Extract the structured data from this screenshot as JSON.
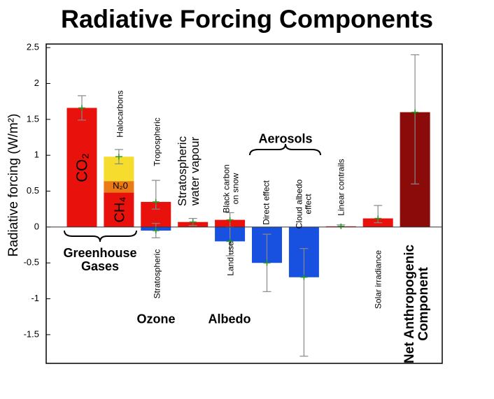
{
  "chart_data": {
    "type": "bar",
    "title": "Radiative Forcing Components",
    "y_label": "Radiative forcing (W/m²)",
    "ylim": [
      -1.9,
      2.55
    ],
    "yticks": [
      2.5,
      2,
      1.5,
      1,
      0.5,
      0,
      -0.5,
      -1,
      -1.5
    ],
    "columns": [
      {
        "segments": [
          {
            "label": "CO₂",
            "value": 1.66,
            "color": "#e8110c",
            "range": [
              1.49,
              1.83
            ]
          }
        ]
      },
      {
        "segments": [
          {
            "label": "CH₄",
            "value": 0.48,
            "color": "#e8110c"
          },
          {
            "label": "N₂0",
            "value": 0.16,
            "color": "#ea7a14"
          },
          {
            "label": "Halocarbons",
            "value": 0.34,
            "color": "#f6dc2c",
            "range": [
              0.88,
              1.08
            ]
          }
        ]
      },
      {
        "segments": [
          {
            "label": "Tropospheric",
            "value": 0.35,
            "color": "#e8110c",
            "range": [
              0.25,
              0.65
            ]
          },
          {
            "label": "Stratospheric",
            "value": -0.05,
            "color": "#1851e0",
            "range": [
              -0.15,
              0.05
            ]
          }
        ]
      },
      {
        "segments": [
          {
            "label": "Stratospheric water vapour",
            "value": 0.07,
            "color": "#e8110c",
            "range": [
              0.02,
              0.12
            ]
          }
        ]
      },
      {
        "segments": [
          {
            "label": "Black carbon on snow",
            "value": 0.1,
            "color": "#e8110c",
            "range": [
              0,
              0.2
            ]
          },
          {
            "label": "Land use",
            "value": -0.2,
            "color": "#1851e0",
            "range": [
              -0.4,
              0
            ]
          }
        ]
      },
      {
        "segments": [
          {
            "label": "Direct effect",
            "value": -0.5,
            "color": "#1851e0",
            "range": [
              -0.9,
              -0.1
            ]
          }
        ]
      },
      {
        "segments": [
          {
            "label": "Cloud albedo effect",
            "value": -0.7,
            "color": "#1851e0",
            "range": [
              -1.8,
              -0.3
            ]
          }
        ]
      },
      {
        "segments": [
          {
            "label": "Linear contrails",
            "value": 0.01,
            "color": "#e8110c",
            "range": [
              0.003,
              0.03
            ]
          }
        ]
      },
      {
        "segments": [
          {
            "label": "Solar irradiance",
            "value": 0.12,
            "color": "#e8110c",
            "range": [
              0.06,
              0.3
            ]
          }
        ]
      },
      {
        "segments": [
          {
            "label": "Net Anthropogenic Component",
            "value": 1.6,
            "color": "#8b0a0a",
            "range": [
              0.6,
              2.4
            ]
          }
        ]
      }
    ],
    "groups": [
      {
        "label": "Greenhouse Gases"
      },
      {
        "label": "Ozone"
      },
      {
        "label": "Albedo"
      },
      {
        "label": "Aerosols"
      }
    ]
  }
}
